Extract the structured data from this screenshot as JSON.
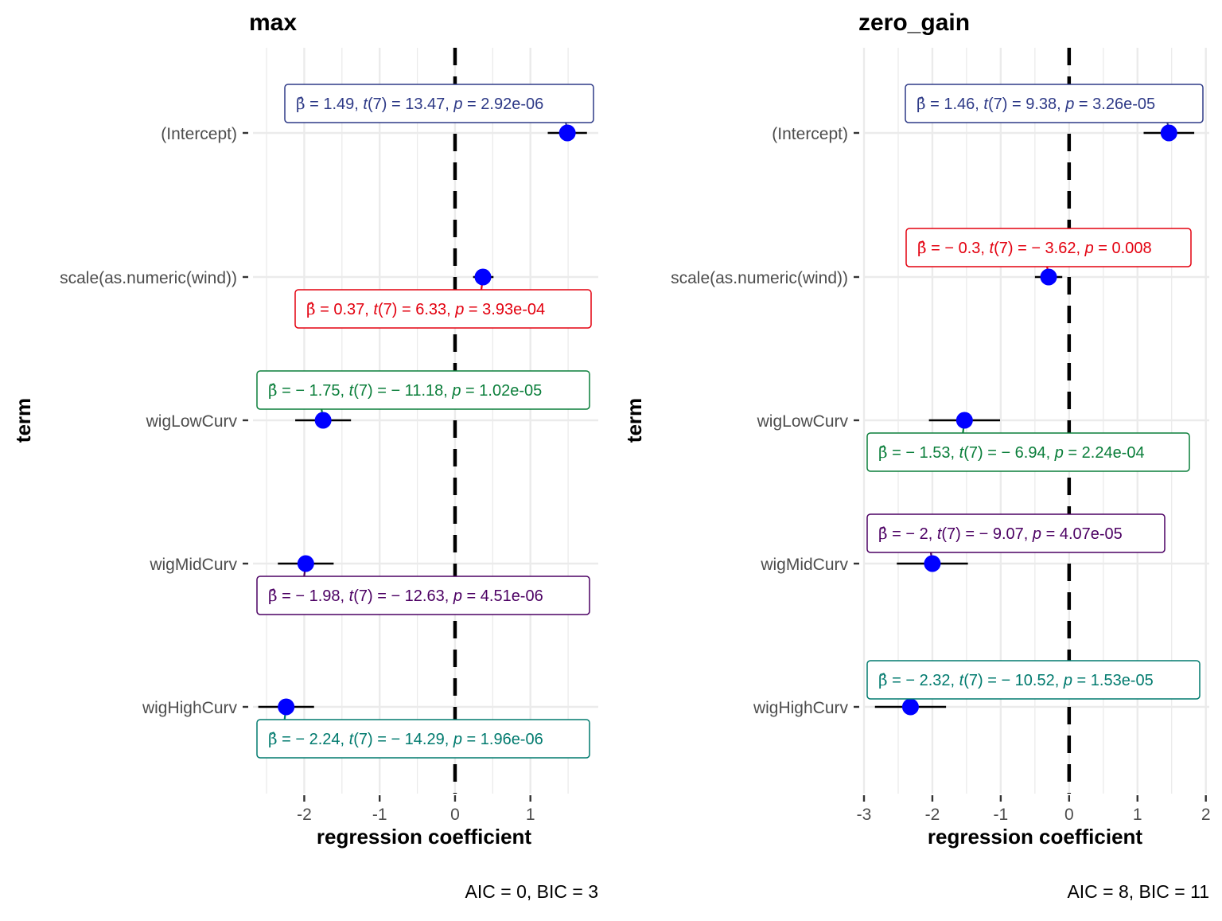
{
  "colors": {
    "point": "#0000ff",
    "grid": "#ebebeb",
    "zero_line": "#000000",
    "label_colors": [
      "#2e3a87",
      "#e3000f",
      "#0a7e3a",
      "#4c0063",
      "#007a6e"
    ]
  },
  "chart_data": [
    {
      "type": "dot-whisker",
      "title": "max",
      "xlabel": "regression coefficient",
      "ylabel": "term",
      "caption": "AIC = 0, BIC = 3",
      "xlim": [
        -2.68,
        1.9
      ],
      "xticks": [
        -2,
        -1,
        0,
        1
      ],
      "xtick_labels": [
        "-2",
        "-1",
        "0",
        "1"
      ],
      "grid": true,
      "zero_line": 0,
      "terms": [
        "(Intercept)",
        "scale(as.numeric(wind))",
        "wigLowCurv",
        "wigMidCurv",
        "wigHighCurv"
      ],
      "estimates": [
        1.49,
        0.37,
        -1.75,
        -1.98,
        -2.24
      ],
      "ci_low": [
        1.23,
        0.24,
        -2.12,
        -2.35,
        -2.61
      ],
      "ci_high": [
        1.75,
        0.51,
        -1.38,
        -1.61,
        -1.87
      ],
      "labels": [
        {
          "beta": "1.49",
          "t": "13.47",
          "df": "7",
          "p": "2.92e-06",
          "side": "above"
        },
        {
          "beta": "0.37",
          "t": "6.33",
          "df": "7",
          "p": "3.93e-04",
          "side": "below"
        },
        {
          "beta": "− 1.75",
          "t": "− 11.18",
          "df": "7",
          "p": "1.02e-05",
          "side": "above"
        },
        {
          "beta": "− 1.98",
          "t": "− 12.63",
          "df": "7",
          "p": "4.51e-06",
          "side": "below"
        },
        {
          "beta": "− 2.24",
          "t": "− 14.29",
          "df": "7",
          "p": "1.96e-06",
          "side": "below"
        }
      ]
    },
    {
      "type": "dot-whisker",
      "title": "zero_gain",
      "xlabel": "regression coefficient",
      "ylabel": "term",
      "caption": "AIC = 8, BIC = 11",
      "xlim": [
        -3.0,
        2.05
      ],
      "xticks": [
        -3,
        -2,
        -1,
        0,
        1,
        2
      ],
      "xtick_labels": [
        "-3",
        "-2",
        "-1",
        "0",
        "1",
        "2"
      ],
      "grid": true,
      "zero_line": 0,
      "terms": [
        "(Intercept)",
        "scale(as.numeric(wind))",
        "wigLowCurv",
        "wigMidCurv",
        "wigHighCurv"
      ],
      "estimates": [
        1.46,
        -0.3,
        -1.53,
        -2.0,
        -2.32
      ],
      "ci_low": [
        1.09,
        -0.5,
        -2.05,
        -2.52,
        -2.84
      ],
      "ci_high": [
        1.83,
        -0.1,
        -1.01,
        -1.48,
        -1.8
      ],
      "labels": [
        {
          "beta": "1.46",
          "t": "9.38",
          "df": "7",
          "p": "3.26e-05",
          "side": "above"
        },
        {
          "beta": "− 0.3",
          "t": "− 3.62",
          "df": "7",
          "p": "0.008",
          "side": "above"
        },
        {
          "beta": "− 1.53",
          "t": "− 6.94",
          "df": "7",
          "p": "2.24e-04",
          "side": "below"
        },
        {
          "beta": "− 2",
          "t": "− 9.07",
          "df": "7",
          "p": "4.07e-05",
          "side": "above"
        },
        {
          "beta": "− 2.32",
          "t": "− 10.52",
          "df": "7",
          "p": "1.53e-05",
          "side": "above"
        }
      ]
    }
  ]
}
